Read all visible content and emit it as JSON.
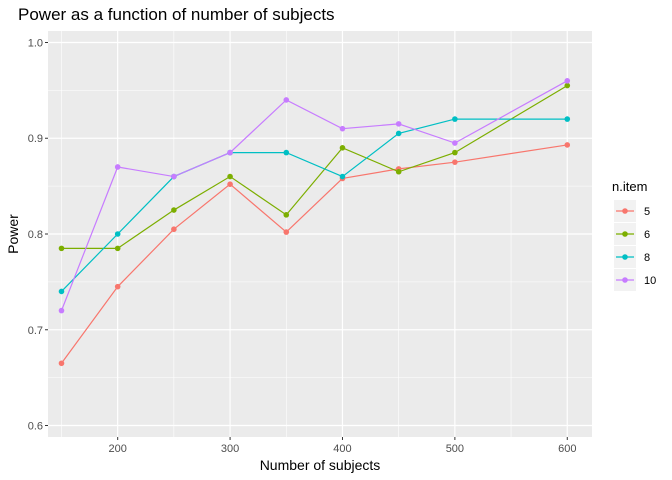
{
  "chart_data": {
    "type": "line",
    "title": "Power as a function of number of subjects",
    "xlabel": "Number of subjects",
    "ylabel": "Power",
    "x": [
      150,
      200,
      250,
      300,
      350,
      400,
      450,
      500,
      600
    ],
    "xlim": [
      138,
      622
    ],
    "ylim": [
      0.588,
      1.012
    ],
    "xticks": [
      200,
      300,
      400,
      500,
      600
    ],
    "yticks": [
      0.6,
      0.7,
      0.8,
      0.9,
      1.0
    ],
    "xtick_labels": [
      "200",
      "300",
      "400",
      "500",
      "600"
    ],
    "ytick_labels": [
      "0.6",
      "0.7",
      "0.8",
      "0.9",
      "1.0"
    ],
    "grid": true,
    "legend": {
      "title": "n.item",
      "position": "right"
    },
    "series": [
      {
        "name": "5",
        "color": "#F8766D",
        "values": [
          0.665,
          0.745,
          0.805,
          0.852,
          0.802,
          0.858,
          0.868,
          0.875,
          0.893
        ]
      },
      {
        "name": "6",
        "color": "#7CAE00",
        "values": [
          0.785,
          0.785,
          0.825,
          0.86,
          0.82,
          0.89,
          0.865,
          0.885,
          0.955
        ]
      },
      {
        "name": "8",
        "color": "#00BFC4",
        "values": [
          0.74,
          0.8,
          0.86,
          0.885,
          0.885,
          0.86,
          0.905,
          0.92,
          0.92
        ]
      },
      {
        "name": "10",
        "color": "#C77CFF",
        "values": [
          0.72,
          0.87,
          0.86,
          0.885,
          0.94,
          0.91,
          0.915,
          0.895,
          0.96
        ]
      }
    ]
  }
}
